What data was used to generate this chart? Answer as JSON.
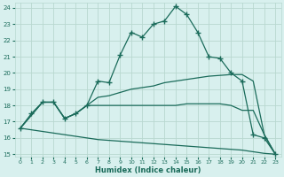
{
  "xlabel": "Humidex (Indice chaleur)",
  "bg_color": "#d8f0ee",
  "grid_color": "#b8d8d0",
  "line_color": "#1a6b5a",
  "xlim": [
    0,
    23
  ],
  "ylim": [
    15,
    24.3
  ],
  "xticks": [
    0,
    1,
    2,
    3,
    4,
    5,
    6,
    7,
    8,
    9,
    10,
    11,
    12,
    13,
    14,
    15,
    16,
    17,
    18,
    19,
    20,
    21,
    22,
    23
  ],
  "yticks": [
    15,
    16,
    17,
    18,
    19,
    20,
    21,
    22,
    23,
    24
  ],
  "line1_x": [
    0,
    1,
    2,
    3,
    4,
    5,
    6,
    7,
    8,
    9,
    10,
    11,
    12,
    13,
    14,
    15,
    16,
    17,
    18,
    19,
    20,
    21,
    22,
    23
  ],
  "line1_y": [
    16.6,
    17.5,
    18.2,
    18.2,
    17.2,
    17.5,
    18.0,
    19.5,
    19.4,
    21.1,
    22.5,
    22.2,
    23.0,
    23.2,
    24.1,
    23.6,
    22.5,
    21.0,
    20.9,
    20.0,
    19.5,
    16.2,
    16.0,
    15.0
  ],
  "line2_x": [
    0,
    2,
    3,
    4,
    5,
    6,
    7,
    8,
    9,
    10,
    11,
    12,
    13,
    14,
    15,
    16,
    17,
    18,
    19,
    20,
    21,
    22,
    23
  ],
  "line2_y": [
    16.6,
    18.2,
    18.2,
    17.2,
    17.5,
    18.0,
    18.5,
    18.6,
    18.8,
    19.0,
    19.1,
    19.2,
    19.4,
    19.5,
    19.6,
    19.7,
    19.8,
    19.85,
    19.9,
    19.9,
    19.5,
    16.2,
    15.0
  ],
  "line3_x": [
    0,
    2,
    3,
    4,
    5,
    6,
    7,
    8,
    9,
    10,
    11,
    12,
    13,
    14,
    15,
    16,
    17,
    18,
    19,
    20,
    21,
    22,
    23
  ],
  "line3_y": [
    16.6,
    18.2,
    18.2,
    17.2,
    17.5,
    18.0,
    18.0,
    18.0,
    18.0,
    18.0,
    18.0,
    18.0,
    18.0,
    18.0,
    18.1,
    18.1,
    18.1,
    18.1,
    18.0,
    17.7,
    17.7,
    16.2,
    15.0
  ],
  "line4_x": [
    0,
    1,
    2,
    3,
    4,
    5,
    6,
    7,
    8,
    9,
    10,
    11,
    12,
    13,
    14,
    15,
    16,
    17,
    18,
    19,
    20,
    21,
    22,
    23
  ],
  "line4_y": [
    16.6,
    16.5,
    16.4,
    16.3,
    16.2,
    16.1,
    16.0,
    15.9,
    15.85,
    15.8,
    15.75,
    15.7,
    15.65,
    15.6,
    15.55,
    15.5,
    15.45,
    15.4,
    15.35,
    15.3,
    15.25,
    15.15,
    15.05,
    15.0
  ]
}
